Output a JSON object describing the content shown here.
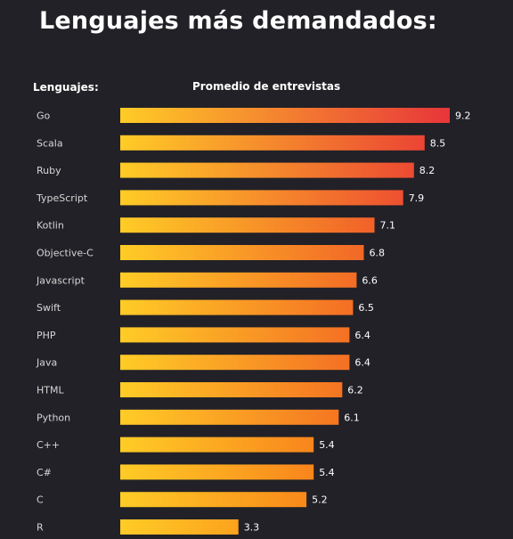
{
  "title": "Lenguajes más demandados:",
  "column_headers": {
    "left": "Lenguajes:",
    "right": "Promedio de entrevistas"
  },
  "colors": {
    "background": "#222127",
    "bar_start": "#ffcc26",
    "bar_end_max": "#e8353a"
  },
  "chart_data": {
    "type": "bar",
    "orientation": "horizontal",
    "title": "Lenguajes más demandados:",
    "xlabel": "Promedio de entrevistas",
    "ylabel": "Lenguajes:",
    "categories": [
      "Go",
      "Scala",
      "Ruby",
      "TypeScript",
      "Kotlin",
      "Objective-C",
      "Javascript",
      "Swift",
      "PHP",
      "Java",
      "HTML",
      "Python",
      "C++",
      "C#",
      "C",
      "R"
    ],
    "values": [
      9.2,
      8.5,
      8.2,
      7.9,
      7.1,
      6.8,
      6.6,
      6.5,
      6.4,
      6.4,
      6.2,
      6.1,
      5.4,
      5.4,
      5.2,
      3.3
    ],
    "value_labels": [
      "9.2",
      "8.5",
      "8.2",
      "7.9",
      "7.1",
      "6.8",
      "6.6",
      "6.5",
      "6.4",
      "6.4",
      "6.2",
      "6.1",
      "5.4",
      "5.4",
      "5.2",
      "3.3"
    ],
    "xlim": [
      0,
      9.2
    ],
    "grid": false,
    "legend": "none"
  }
}
